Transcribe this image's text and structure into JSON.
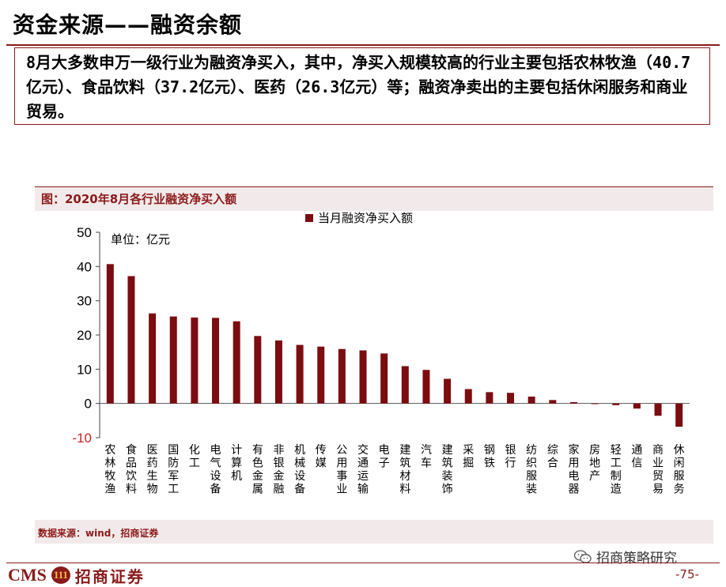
{
  "page": {
    "title": "资金来源——融资余额",
    "summary": "8月大多数申万一级行业为融资净买入，其中，净买入规模较高的行业主要包括农林牧渔（40.7亿元）、食品饮料（37.2亿元）、医药（26.3亿元）等；融资净卖出的主要包括休闲服务和商业贸易。",
    "chart_caption": "图：2020年8月各行业融资净买入额",
    "source": "数据来源：wind，招商证券",
    "wechat_name": "招商策略研究",
    "page_number": "-75-",
    "logo_text": "CMS",
    "logo_badge": "111",
    "logo_name": "招商证券"
  },
  "colors": {
    "bar": "#7b0c10",
    "accent": "#8b1a1a",
    "negative_tick": "#d42020"
  },
  "chart_data": {
    "type": "bar",
    "title": "",
    "unit_label": "单位：亿元",
    "legend": [
      "当月融资净买入额"
    ],
    "legend_position": "top",
    "ylim": [
      -10,
      50
    ],
    "yticks": [
      50,
      40,
      30,
      20,
      10,
      0,
      -10
    ],
    "grid": false,
    "categories": [
      "农林牧渔",
      "食品饮料",
      "医药生物",
      "国防军工",
      "化工",
      "电气设备",
      "计算机",
      "有色金属",
      "非银金融",
      "机械设备",
      "传媒",
      "公用事业",
      "交通运输",
      "电子",
      "建筑材料",
      "汽车",
      "建筑装饰",
      "采掘",
      "钢铁",
      "银行",
      "纺织服装",
      "综合",
      "家用电器",
      "房地产",
      "轻工制造",
      "通信",
      "商业贸易",
      "休闲服务"
    ],
    "series": [
      {
        "name": "当月融资净买入额",
        "values": [
          40.7,
          37.2,
          26.3,
          25.4,
          25.1,
          25.0,
          24.0,
          19.7,
          18.4,
          17.1,
          16.6,
          15.9,
          15.5,
          14.6,
          10.9,
          9.8,
          7.2,
          4.2,
          3.3,
          3.1,
          2.0,
          1.0,
          0.4,
          -0.2,
          -0.5,
          -1.5,
          -3.6,
          -6.8
        ]
      }
    ]
  }
}
